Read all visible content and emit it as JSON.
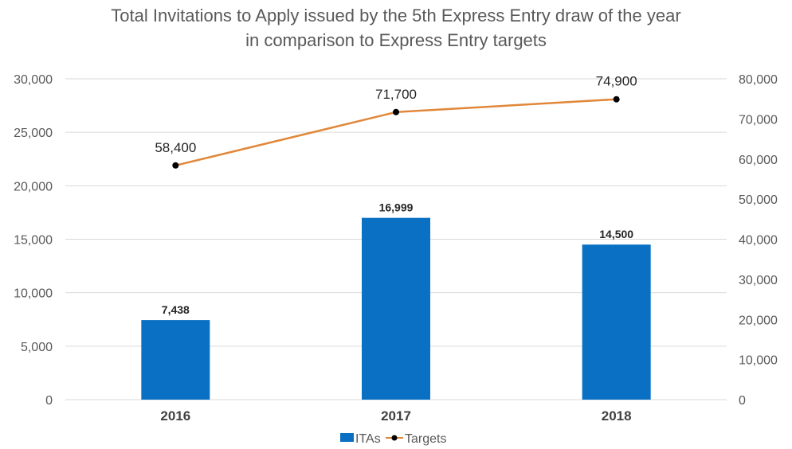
{
  "chart_data": {
    "type": "bar",
    "title_lines": [
      "Total Invitations to Apply issued by the 5th Express Entry draw of the year",
      "in comparison to Express Entry targets"
    ],
    "categories": [
      "2016",
      "2017",
      "2018"
    ],
    "series": [
      {
        "name": "ITAs",
        "type": "bar",
        "axis": "left",
        "color": "#0a70c4",
        "values": [
          7438,
          16999,
          14500
        ],
        "labels": [
          "7,438",
          "16,999",
          "14,500"
        ]
      },
      {
        "name": "Targets",
        "type": "line",
        "axis": "right",
        "color": "#e0873a",
        "marker_color": "#000000",
        "values": [
          58400,
          71700,
          74900
        ],
        "labels": [
          "58,400",
          "71,700",
          "74,900"
        ]
      }
    ],
    "y_left": {
      "range": [
        0,
        30000
      ],
      "ticks": [
        0,
        5000,
        10000,
        15000,
        20000,
        25000,
        30000
      ],
      "tick_labels": [
        "0",
        "5,000",
        "10,000",
        "15,000",
        "20,000",
        "25,000",
        "30,000"
      ]
    },
    "y_right": {
      "range": [
        0,
        80000
      ],
      "ticks": [
        0,
        10000,
        20000,
        30000,
        40000,
        50000,
        60000,
        70000,
        80000
      ],
      "tick_labels": [
        "0",
        "10,000",
        "20,000",
        "30,000",
        "40,000",
        "50,000",
        "60,000",
        "70,000",
        "80,000"
      ]
    },
    "grid": true,
    "legend_position": "bottom",
    "grid_color": "#d9d9d9"
  }
}
